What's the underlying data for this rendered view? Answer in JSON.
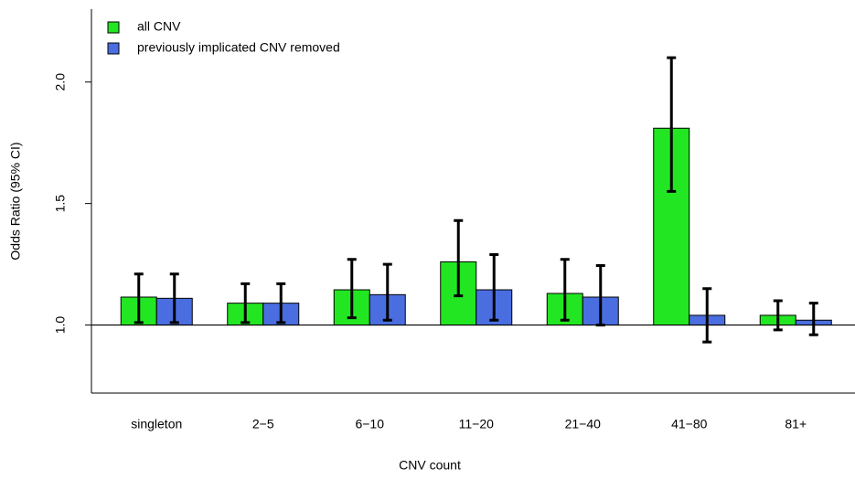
{
  "chart_data": {
    "type": "bar",
    "x_label": "CNV count",
    "y_label": "Odds Ratio (95% CI)",
    "categories": [
      "singleton",
      "2−5",
      "6−10",
      "11−20",
      "21−40",
      "41−80",
      "81+"
    ],
    "series": [
      {
        "name": "all CNV",
        "color": "#22e622",
        "values": [
          1.115,
          1.09,
          1.145,
          1.26,
          1.13,
          1.81,
          1.04
        ],
        "lower": [
          1.01,
          1.01,
          1.03,
          1.12,
          1.02,
          1.55,
          0.98
        ],
        "upper": [
          1.21,
          1.17,
          1.27,
          1.43,
          1.27,
          2.1,
          1.1
        ]
      },
      {
        "name": "previously implicated CNV removed",
        "color": "#4a6ee0",
        "values": [
          1.11,
          1.09,
          1.125,
          1.145,
          1.115,
          1.04,
          1.02
        ],
        "lower": [
          1.01,
          1.01,
          1.02,
          1.02,
          1.0,
          0.93,
          0.96
        ],
        "upper": [
          1.21,
          1.17,
          1.25,
          1.29,
          1.245,
          1.15,
          1.09
        ]
      }
    ],
    "baseline": 1,
    "ylim": [
      0.72,
      2.3
    ],
    "yticks": [
      {
        "value": 1,
        "label": "1.0"
      },
      1.5,
      {
        "value": 2,
        "label": "2.0"
      }
    ],
    "legend": "top-left"
  }
}
